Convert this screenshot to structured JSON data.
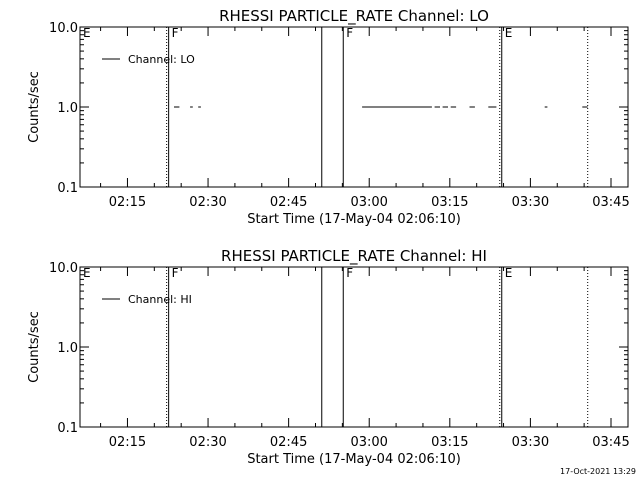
{
  "footer": {
    "timestamp": "17-Oct-2021 13:29"
  },
  "chart_data": [
    {
      "type": "line",
      "title": "RHESSI PARTICLE_RATE Channel: LO",
      "xlabel": "Start Time (17-May-04 02:06:10)",
      "ylabel": "Counts/sec",
      "y_scale": "log",
      "ylim": [
        0.1,
        10.0
      ],
      "yticks": [
        "0.1",
        "1.0",
        "10.0"
      ],
      "x_unit": "minutes since 02:06:10",
      "xlim": [
        0,
        102
      ],
      "xticks": [
        "02:15",
        "02:30",
        "02:45",
        "03:00",
        "03:15",
        "03:30",
        "03:45"
      ],
      "legend": {
        "position": "top-left",
        "label": "Channel: LO"
      },
      "series": [
        {
          "name": "Channel: LO",
          "segments": [
            [
              [
                17.5,
                1.0
              ],
              [
                18.5,
                1.0
              ]
            ],
            [
              [
                20.5,
                1.0
              ],
              [
                21.0,
                1.0
              ]
            ],
            [
              [
                22.0,
                1.0
              ],
              [
                22.5,
                1.0
              ]
            ],
            [
              [
                52.5,
                1.0
              ],
              [
                65.5,
                1.0
              ]
            ],
            [
              [
                66.0,
                1.0
              ],
              [
                67.0,
                1.0
              ]
            ],
            [
              [
                67.5,
                1.0
              ],
              [
                68.5,
                1.0
              ]
            ],
            [
              [
                69.0,
                1.0
              ],
              [
                70.0,
                1.0
              ]
            ],
            [
              [
                72.5,
                1.0
              ],
              [
                73.5,
                1.0
              ]
            ],
            [
              [
                76.0,
                1.0
              ],
              [
                77.5,
                1.0
              ]
            ],
            [
              [
                86.5,
                1.0
              ],
              [
                87.0,
                1.0
              ]
            ],
            [
              [
                93.5,
                1.0
              ],
              [
                94.5,
                1.0
              ]
            ]
          ]
        }
      ],
      "markers": [
        {
          "x": 0.0,
          "style": "dotted",
          "label": "E"
        },
        {
          "x": 16.5,
          "style": "solid+dotted",
          "label": "F"
        },
        {
          "x": 45.0,
          "style": "solid",
          "label": ""
        },
        {
          "x": 49.0,
          "style": "solid",
          "label": "F"
        },
        {
          "x": 78.5,
          "style": "solid+dotted",
          "label": "E"
        },
        {
          "x": 94.5,
          "style": "dotted",
          "label": ""
        }
      ]
    },
    {
      "type": "line",
      "title": "RHESSI PARTICLE_RATE Channel: HI",
      "xlabel": "Start Time (17-May-04 02:06:10)",
      "ylabel": "Counts/sec",
      "y_scale": "log",
      "ylim": [
        0.1,
        10.0
      ],
      "yticks": [
        "0.1",
        "1.0",
        "10.0"
      ],
      "x_unit": "minutes since 02:06:10",
      "xlim": [
        0,
        102
      ],
      "xticks": [
        "02:15",
        "02:30",
        "02:45",
        "03:00",
        "03:15",
        "03:30",
        "03:45"
      ],
      "legend": {
        "position": "top-left",
        "label": "Channel: HI"
      },
      "series": [
        {
          "name": "Channel: HI",
          "segments": []
        }
      ],
      "markers": [
        {
          "x": 0.0,
          "style": "dotted",
          "label": "E"
        },
        {
          "x": 16.5,
          "style": "solid+dotted",
          "label": "F"
        },
        {
          "x": 45.0,
          "style": "solid",
          "label": ""
        },
        {
          "x": 49.0,
          "style": "solid",
          "label": "F"
        },
        {
          "x": 78.5,
          "style": "solid+dotted",
          "label": "E"
        },
        {
          "x": 94.5,
          "style": "dotted",
          "label": ""
        }
      ]
    }
  ]
}
